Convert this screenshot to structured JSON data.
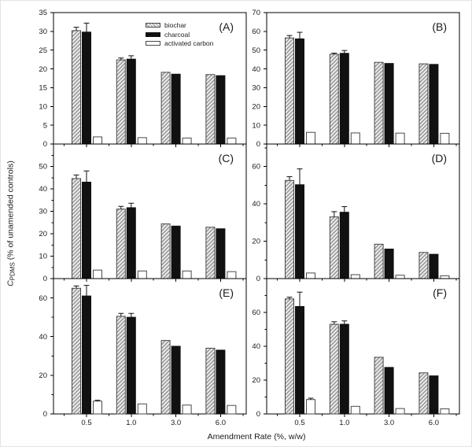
{
  "figure": {
    "ylabel": {
      "symbol": "C",
      "subscript": "PDMS",
      "rest": " (% of unamended controls)"
    },
    "xlabel": "Amendment Rate (%, w/w)",
    "legend": {
      "position": "top-center-of-panel-A",
      "items": [
        {
          "label": "biochar",
          "pattern": "hatch"
        },
        {
          "label": "charcoal",
          "pattern": "solid"
        },
        {
          "label": "activated carbon",
          "pattern": "open"
        }
      ]
    },
    "colors": {
      "axis": "#000000",
      "text": "#1a1a1a",
      "charcoal_bar": "#111111",
      "hatch_background": "#ececec",
      "hatch_line": "#8b8b8b",
      "bar_outline": "#4a4a4a",
      "background": "#ffffff"
    }
  },
  "chart_data": [
    {
      "type": "bar",
      "panel_label": "(A)",
      "grid": "on? no - plain axes",
      "categories": [
        "0.5",
        "1.0",
        "3.0",
        "6.0"
      ],
      "ylim": [
        0,
        35
      ],
      "yticks": [
        0,
        5,
        10,
        15,
        20,
        25,
        30,
        35
      ],
      "yminor_step": null,
      "series": [
        {
          "name": "biochar",
          "values": [
            30.2,
            22.4,
            19.1,
            18.5
          ],
          "errors": [
            0.9,
            0.5,
            0,
            0
          ]
        },
        {
          "name": "charcoal",
          "values": [
            29.8,
            22.6,
            18.6,
            18.2
          ],
          "errors": [
            2.4,
            0.9,
            0,
            0
          ]
        },
        {
          "name": "activated carbon",
          "values": [
            1.9,
            1.7,
            1.6,
            1.6
          ],
          "errors": [
            0,
            0,
            0,
            0
          ]
        }
      ]
    },
    {
      "type": "bar",
      "panel_label": "(B)",
      "categories": [
        "0.5",
        "1.0",
        "3.0",
        "6.0"
      ],
      "ylim": [
        0,
        70
      ],
      "yticks": [
        0,
        10,
        20,
        30,
        40,
        50,
        60,
        70
      ],
      "yminor_step": null,
      "series": [
        {
          "name": "biochar",
          "values": [
            56.5,
            47.8,
            43.5,
            42.7
          ],
          "errors": [
            1.3,
            0.6,
            0,
            0
          ]
        },
        {
          "name": "charcoal",
          "values": [
            56.0,
            48.3,
            42.9,
            42.4
          ],
          "errors": [
            3.5,
            1.5,
            0,
            0
          ]
        },
        {
          "name": "activated carbon",
          "values": [
            6.2,
            5.9,
            5.8,
            5.7
          ],
          "errors": [
            0,
            0,
            0,
            0
          ]
        }
      ]
    },
    {
      "type": "bar",
      "panel_label": "(C)",
      "categories": [
        "0.5",
        "1.0",
        "3.0",
        "6.0"
      ],
      "ylim": [
        0,
        60
      ],
      "yticks": [
        0,
        10,
        20,
        30,
        40,
        50
      ],
      "yminor_step": 5,
      "series": [
        {
          "name": "biochar",
          "values": [
            44.6,
            31.0,
            24.4,
            22.9
          ],
          "errors": [
            1.6,
            1.2,
            0,
            0
          ]
        },
        {
          "name": "charcoal",
          "values": [
            43.0,
            31.6,
            23.4,
            22.2
          ],
          "errors": [
            5.0,
            2.0,
            0,
            0
          ]
        },
        {
          "name": "activated carbon",
          "values": [
            3.8,
            3.4,
            3.4,
            3.1
          ],
          "errors": [
            0,
            0,
            0,
            0
          ]
        }
      ]
    },
    {
      "type": "bar",
      "panel_label": "(D)",
      "categories": [
        "0.5",
        "1.0",
        "3.0",
        "6.0"
      ],
      "ylim": [
        0,
        72
      ],
      "yticks": [
        0,
        20,
        40,
        60
      ],
      "yminor_step": 10,
      "series": [
        {
          "name": "biochar",
          "values": [
            52.5,
            33.0,
            18.4,
            14.0
          ],
          "errors": [
            2.0,
            2.8,
            0,
            0
          ]
        },
        {
          "name": "charcoal",
          "values": [
            50.2,
            35.5,
            15.8,
            13.0
          ],
          "errors": [
            8.5,
            3.0,
            0,
            0
          ]
        },
        {
          "name": "activated carbon",
          "values": [
            3.0,
            2.1,
            1.8,
            1.5
          ],
          "errors": [
            0,
            0,
            0,
            0
          ]
        }
      ]
    },
    {
      "type": "bar",
      "panel_label": "(E)",
      "categories": [
        "0.5",
        "1.0",
        "3.0",
        "6.0"
      ],
      "ylim": [
        0,
        70
      ],
      "yticks": [
        0,
        20,
        40,
        60
      ],
      "yminor_step": 10,
      "series": [
        {
          "name": "biochar",
          "values": [
            65.0,
            50.5,
            38.0,
            34.0
          ],
          "errors": [
            1.2,
            1.5,
            0,
            0
          ]
        },
        {
          "name": "charcoal",
          "values": [
            61.0,
            50.0,
            35.0,
            33.0
          ],
          "errors": [
            5.5,
            2.0,
            0,
            0
          ]
        },
        {
          "name": "activated carbon",
          "values": [
            6.6,
            5.2,
            4.6,
            4.4
          ],
          "errors": [
            0.5,
            0,
            0,
            0
          ]
        }
      ]
    },
    {
      "type": "bar",
      "panel_label": "(F)",
      "categories": [
        "0.5",
        "1.0",
        "3.0",
        "6.0"
      ],
      "ylim": [
        0,
        80
      ],
      "yticks": [
        0,
        20,
        40,
        60
      ],
      "yminor_step": 10,
      "series": [
        {
          "name": "biochar",
          "values": [
            68.0,
            53.0,
            33.5,
            24.3
          ],
          "errors": [
            1.0,
            1.5,
            0,
            0
          ]
        },
        {
          "name": "charcoal",
          "values": [
            63.5,
            53.0,
            27.5,
            22.5
          ],
          "errors": [
            8.5,
            2.0,
            0,
            0
          ]
        },
        {
          "name": "activated carbon",
          "values": [
            8.5,
            4.5,
            3.2,
            3.0
          ],
          "errors": [
            0.8,
            0,
            0,
            0
          ]
        }
      ]
    }
  ]
}
